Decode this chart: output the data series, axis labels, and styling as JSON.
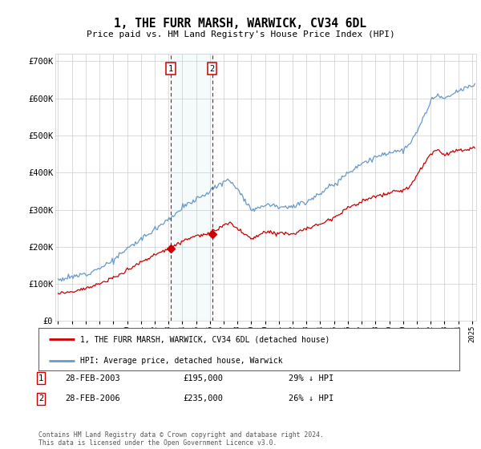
{
  "title": "1, THE FURR MARSH, WARWICK, CV34 6DL",
  "subtitle": "Price paid vs. HM Land Registry's House Price Index (HPI)",
  "legend_line1": "1, THE FURR MARSH, WARWICK, CV34 6DL (detached house)",
  "legend_line2": "HPI: Average price, detached house, Warwick",
  "transaction1_date": "28-FEB-2003",
  "transaction1_price": 195000,
  "transaction1_pct": "29% ↓ HPI",
  "transaction2_date": "28-FEB-2006",
  "transaction2_price": 235000,
  "transaction2_pct": "26% ↓ HPI",
  "footer": "Contains HM Land Registry data © Crown copyright and database right 2024.\nThis data is licensed under the Open Government Licence v3.0.",
  "red_color": "#cc0000",
  "blue_color": "#6699cc",
  "ylim": [
    0,
    720000
  ],
  "yticks": [
    0,
    100000,
    200000,
    300000,
    400000,
    500000,
    600000,
    700000
  ],
  "ytick_labels": [
    "£0",
    "£100K",
    "£200K",
    "£300K",
    "£400K",
    "£500K",
    "£600K",
    "£700K"
  ],
  "hpi_control_years": [
    1995,
    1996,
    1997,
    1998,
    1999,
    2000,
    2001,
    2002,
    2003,
    2004,
    2005,
    2006,
    2007,
    2007.5,
    2008,
    2008.5,
    2009,
    2009.5,
    2010,
    2011,
    2012,
    2013,
    2014,
    2015,
    2016,
    2017,
    2018,
    2019,
    2020,
    2020.5,
    2021,
    2022,
    2022.5,
    2023,
    2024,
    2024.5,
    2025.1
  ],
  "hpi_control_vals": [
    112000,
    118000,
    128000,
    143000,
    163000,
    195000,
    220000,
    248000,
    275000,
    305000,
    328000,
    350000,
    375000,
    380000,
    355000,
    330000,
    300000,
    305000,
    315000,
    310000,
    308000,
    322000,
    345000,
    368000,
    400000,
    425000,
    440000,
    455000,
    460000,
    475000,
    510000,
    590000,
    610000,
    598000,
    618000,
    628000,
    635000
  ],
  "red_control_years": [
    1995,
    1996,
    1997,
    1998,
    1999,
    2000,
    2001,
    2002,
    2003,
    2004,
    2005,
    2006,
    2007,
    2007.5,
    2008,
    2008.5,
    2009,
    2009.5,
    2010,
    2011,
    2012,
    2013,
    2014,
    2015,
    2016,
    2017,
    2018,
    2019,
    2020,
    2020.5,
    2021,
    2022,
    2022.5,
    2023,
    2024,
    2024.5,
    2025.1
  ],
  "red_control_vals": [
    75000,
    80000,
    88000,
    100000,
    115000,
    138000,
    158000,
    178000,
    195000,
    215000,
    230000,
    235000,
    258000,
    265000,
    248000,
    235000,
    220000,
    230000,
    240000,
    238000,
    235000,
    248000,
    262000,
    280000,
    305000,
    322000,
    335000,
    345000,
    352000,
    363000,
    392000,
    450000,
    462000,
    448000,
    462000,
    458000,
    465000
  ]
}
